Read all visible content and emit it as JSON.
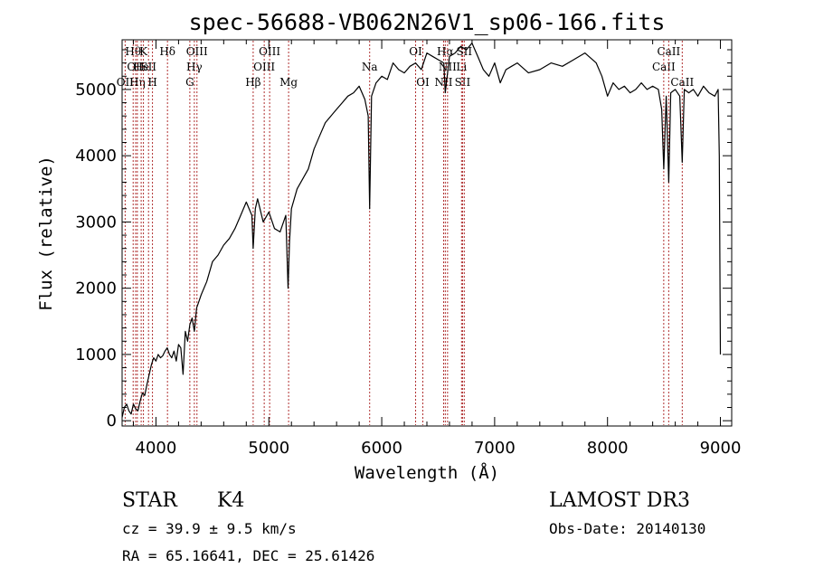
{
  "chart_data": {
    "type": "line",
    "title": "spec-56688-VB062N26V1_sp06-166.fits",
    "xlabel": "Wavelength (Å)",
    "ylabel": "Flux (relative)",
    "xlim": [
      3700,
      9100
    ],
    "ylim": [
      -80,
      5750
    ],
    "xticks": [
      4000,
      5000,
      6000,
      7000,
      8000,
      9000
    ],
    "yticks": [
      0,
      1000,
      2000,
      3000,
      4000,
      5000
    ],
    "x_tick_labels": [
      "4000",
      "5000",
      "6000",
      "7000",
      "8000",
      "9000"
    ],
    "y_tick_labels": [
      "0",
      "1000",
      "2000",
      "3000",
      "4000",
      "5000"
    ],
    "grid": false,
    "series": [
      {
        "x": [
          3700,
          3720,
          3740,
          3760,
          3780,
          3800,
          3820,
          3840,
          3860,
          3880,
          3900,
          3920,
          3940,
          3960,
          3980,
          4000,
          4020,
          4040,
          4060,
          4080,
          4100,
          4120,
          4140,
          4160,
          4180,
          4200,
          4220,
          4240,
          4260,
          4280,
          4300,
          4320,
          4340,
          4360,
          4380,
          4400,
          4450,
          4500,
          4550,
          4600,
          4650,
          4700,
          4750,
          4800,
          4850,
          4861,
          4880,
          4900,
          4950,
          5000,
          5050,
          5100,
          5150,
          5170,
          5183,
          5200,
          5250,
          5300,
          5350,
          5400,
          5450,
          5500,
          5550,
          5600,
          5650,
          5700,
          5750,
          5800,
          5850,
          5880,
          5893,
          5910,
          5950,
          6000,
          6050,
          6100,
          6150,
          6200,
          6250,
          6300,
          6350,
          6400,
          6450,
          6500,
          6550,
          6563,
          6600,
          6650,
          6700,
          6750,
          6800,
          6850,
          6900,
          6950,
          7000,
          7050,
          7100,
          7150,
          7200,
          7300,
          7400,
          7500,
          7600,
          7700,
          7800,
          7900,
          7950,
          8000,
          8050,
          8100,
          8150,
          8200,
          8250,
          8300,
          8350,
          8400,
          8450,
          8480,
          8498,
          8520,
          8542,
          8560,
          8600,
          8640,
          8662,
          8680,
          8720,
          8760,
          8800,
          8850,
          8900,
          8950,
          8980,
          8990,
          9000
        ],
        "y": [
          50,
          200,
          250,
          150,
          100,
          250,
          180,
          150,
          300,
          420,
          380,
          550,
          700,
          850,
          950,
          900,
          1000,
          950,
          980,
          1050,
          1100,
          1000,
          950,
          1050,
          900,
          1150,
          1100,
          700,
          1350,
          1200,
          1450,
          1550,
          1350,
          1700,
          1800,
          1900,
          2100,
          2400,
          2500,
          2650,
          2750,
          2900,
          3100,
          3300,
          3100,
          2600,
          3200,
          3350,
          3000,
          3150,
          2900,
          2850,
          3100,
          2000,
          2700,
          3200,
          3500,
          3650,
          3800,
          4100,
          4300,
          4500,
          4600,
          4700,
          4800,
          4900,
          4950,
          5050,
          4850,
          4600,
          3200,
          4900,
          5100,
          5200,
          5150,
          5400,
          5300,
          5250,
          5350,
          5400,
          5300,
          5550,
          5500,
          5450,
          5400,
          4950,
          5500,
          5550,
          5650,
          5600,
          5700,
          5500,
          5300,
          5200,
          5400,
          5100,
          5300,
          5350,
          5400,
          5250,
          5300,
          5400,
          5350,
          5450,
          5550,
          5400,
          5200,
          4900,
          5100,
          5000,
          5050,
          4950,
          5000,
          5100,
          5000,
          5050,
          5000,
          4700,
          3800,
          4900,
          3600,
          4950,
          5000,
          4900,
          3900,
          5000,
          4950,
          5000,
          4900,
          5050,
          4950,
          4900,
          5000,
          4000,
          1000
        ]
      }
    ],
    "line_markers": [
      {
        "w": 3727,
        "label": "OII",
        "row": 2
      },
      {
        "w": 3798,
        "label": "Hθ",
        "row": 0
      },
      {
        "w": 3820,
        "label": "OII",
        "row": 1
      },
      {
        "w": 3835,
        "label": "Hη",
        "row": 2
      },
      {
        "w": 3869,
        "label": "He",
        "row": 1
      },
      {
        "w": 3889,
        "label": "K",
        "row": 0
      },
      {
        "w": 3934,
        "label": "SII",
        "row": 1
      },
      {
        "w": 3969,
        "label": "H",
        "row": 2
      },
      {
        "w": 4102,
        "label": "Hδ",
        "row": 0
      },
      {
        "w": 4300,
        "label": "G",
        "row": 2
      },
      {
        "w": 4340,
        "label": "Hγ",
        "row": 1
      },
      {
        "w": 4363,
        "label": "OIII",
        "row": 0
      },
      {
        "w": 4861,
        "label": "Hβ",
        "row": 2
      },
      {
        "w": 4959,
        "label": "OIII",
        "row": 1
      },
      {
        "w": 5007,
        "label": "OIII",
        "row": 0
      },
      {
        "w": 5175,
        "label": "Mg",
        "row": 2
      },
      {
        "w": 5893,
        "label": "Na",
        "row": 1
      },
      {
        "w": 6300,
        "label": "OI",
        "row": 0
      },
      {
        "w": 6364,
        "label": "OI",
        "row": 2
      },
      {
        "w": 6548,
        "label": "NII",
        "row": 2
      },
      {
        "w": 6563,
        "label": "Hα",
        "row": 0
      },
      {
        "w": 6583,
        "label": "NII",
        "row": 1
      },
      {
        "w": 6707,
        "label": "Li",
        "row": 1
      },
      {
        "w": 6716,
        "label": "SII",
        "row": 2
      },
      {
        "w": 6731,
        "label": "SII",
        "row": 0
      },
      {
        "w": 8498,
        "label": "CaII",
        "row": 1
      },
      {
        "w": 8542,
        "label": "CaII",
        "row": 0
      },
      {
        "w": 8662,
        "label": "CaII",
        "row": 2
      }
    ]
  },
  "info": {
    "class": "STAR",
    "subclass": "K4",
    "survey": "LAMOST DR3",
    "cz": "cz = 39.9 ± 9.5 km/s",
    "obs_date": "Obs-Date: 20140130",
    "coords": "RA =  65.16641, DEC =  25.61426"
  }
}
